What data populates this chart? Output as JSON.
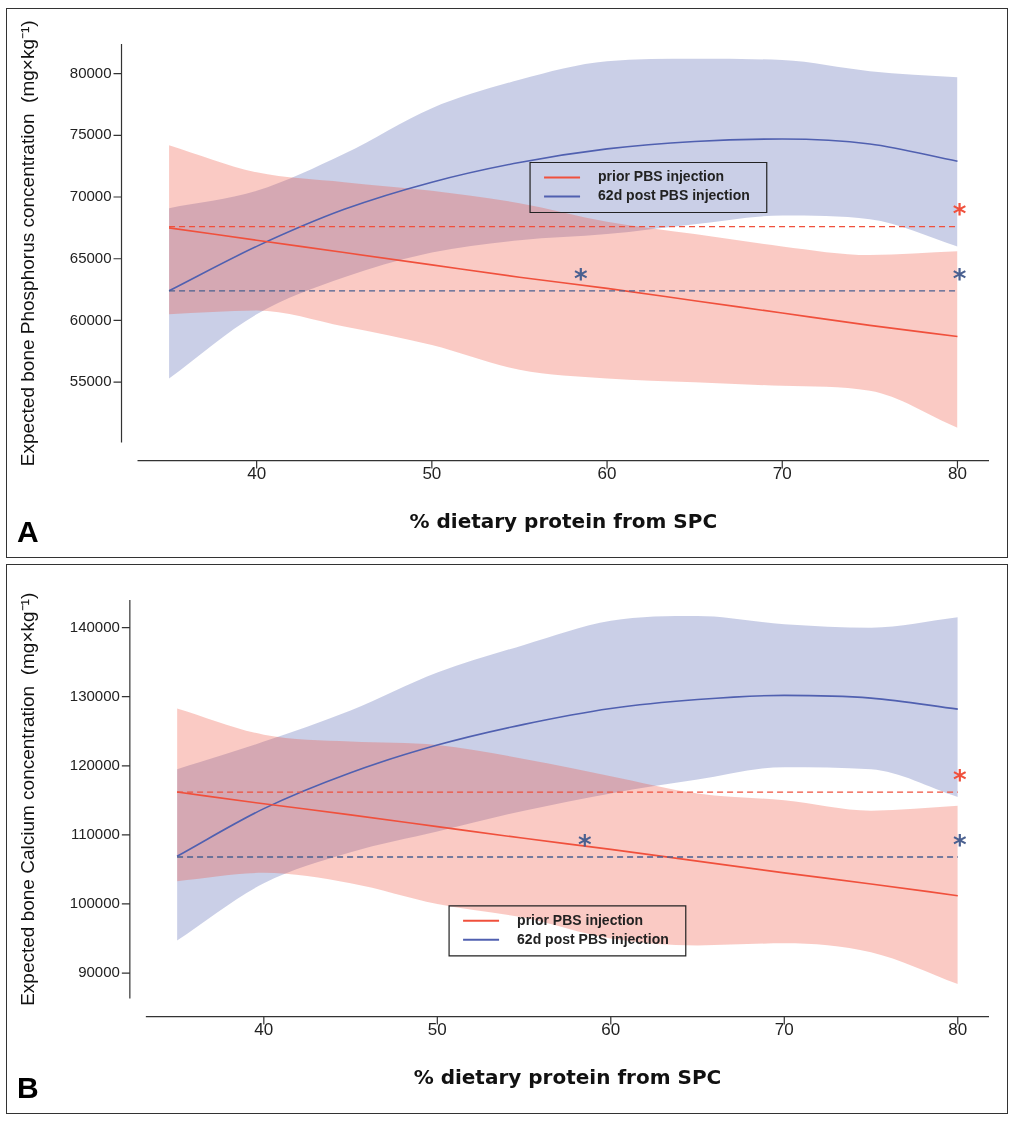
{
  "chart_data": [
    {
      "type": "line",
      "ylabel": "Expected bone Phosphorus concentration  (mg×kg⁻¹)",
      "xlabel": "% dietary protein from SPC",
      "x": [
        35,
        40,
        45,
        50,
        55,
        60,
        65,
        70,
        75,
        80
      ],
      "xlim": [
        33.2,
        81.8
      ],
      "xticks": [
        40,
        50,
        60,
        70,
        80
      ],
      "ylim": [
        50100,
        82400
      ],
      "yticks": [
        55000,
        60000,
        65000,
        70000,
        75000,
        80000
      ],
      "grid": false,
      "legend": "top",
      "line_style": "solid",
      "marker": "none",
      "series": [
        {
          "name": "prior PBS injection",
          "color": "#f0503c",
          "values": [
            67500,
            66500,
            65500,
            64500,
            63500,
            62600,
            61600,
            60600,
            59600,
            58700
          ],
          "lower": [
            60500,
            60800,
            59500,
            58000,
            56000,
            55300,
            55000,
            54700,
            54300,
            51300
          ],
          "upper": [
            74200,
            72000,
            71200,
            70500,
            69500,
            68000,
            67000,
            66000,
            65300,
            65600
          ]
        },
        {
          "name": "62d post PBS injection",
          "color": "#5060b0",
          "values": [
            62400,
            66000,
            69000,
            71200,
            72800,
            73900,
            74500,
            74700,
            74300,
            72900
          ],
          "lower": [
            55300,
            60500,
            63500,
            65500,
            66500,
            67000,
            67800,
            68500,
            68200,
            66000
          ],
          "upper": [
            69100,
            70500,
            73500,
            77200,
            79500,
            81000,
            81200,
            81100,
            80200,
            79700
          ]
        }
      ],
      "ref_lines": [
        {
          "axis": "y",
          "value": 67600,
          "color": "#f0503c",
          "line_style": "dashed",
          "label": "*"
        },
        {
          "axis": "y",
          "value": 62400,
          "color": "#4a6090",
          "line_style": "dashed",
          "label": "*"
        }
      ],
      "annotations": [
        "A",
        {
          "text": "*",
          "x": 58.5,
          "y": 62400
        }
      ]
    },
    {
      "type": "line",
      "ylabel": "Expected bone Calcium concentration  (mg×kg⁻¹)",
      "xlabel": "% dietary protein from SPC",
      "x": [
        35,
        40,
        45,
        50,
        55,
        60,
        65,
        70,
        75,
        80
      ],
      "xlim": [
        33.2,
        81.8
      ],
      "xticks": [
        40,
        50,
        60,
        70,
        80
      ],
      "ylim": [
        86300,
        144000
      ],
      "yticks": [
        90000,
        100000,
        110000,
        120000,
        130000,
        140000
      ],
      "grid": false,
      "legend": "bottom",
      "line_style": "solid",
      "marker": "none",
      "series": [
        {
          "name": "prior PBS injection",
          "color": "#f0503c",
          "values": [
            116200,
            114500,
            112900,
            111200,
            109500,
            107900,
            106200,
            104500,
            102900,
            101200
          ],
          "lower": [
            103300,
            104500,
            103000,
            100000,
            98000,
            95000,
            94000,
            94300,
            93000,
            88400
          ],
          "upper": [
            128300,
            124500,
            123500,
            123000,
            121000,
            118500,
            116000,
            115000,
            113500,
            114200
          ]
        },
        {
          "name": "62d post PBS injection",
          "color": "#5060b0",
          "values": [
            106900,
            113800,
            119000,
            123000,
            126000,
            128300,
            129600,
            130200,
            129800,
            128200
          ],
          "lower": [
            94700,
            103000,
            107500,
            110500,
            113500,
            116000,
            118000,
            119800,
            119500,
            115500
          ],
          "upper": [
            119500,
            123500,
            128000,
            133500,
            137500,
            141000,
            141700,
            140500,
            140000,
            141500
          ]
        }
      ],
      "ref_lines": [
        {
          "axis": "y",
          "value": 116200,
          "color": "#f0503c",
          "line_style": "dashed",
          "label": "*"
        },
        {
          "axis": "y",
          "value": 106800,
          "color": "#4a6090",
          "line_style": "dashed",
          "label": "*"
        }
      ],
      "annotations": [
        "B",
        {
          "text": "*",
          "x": 58.5,
          "y": 106800
        }
      ]
    }
  ]
}
